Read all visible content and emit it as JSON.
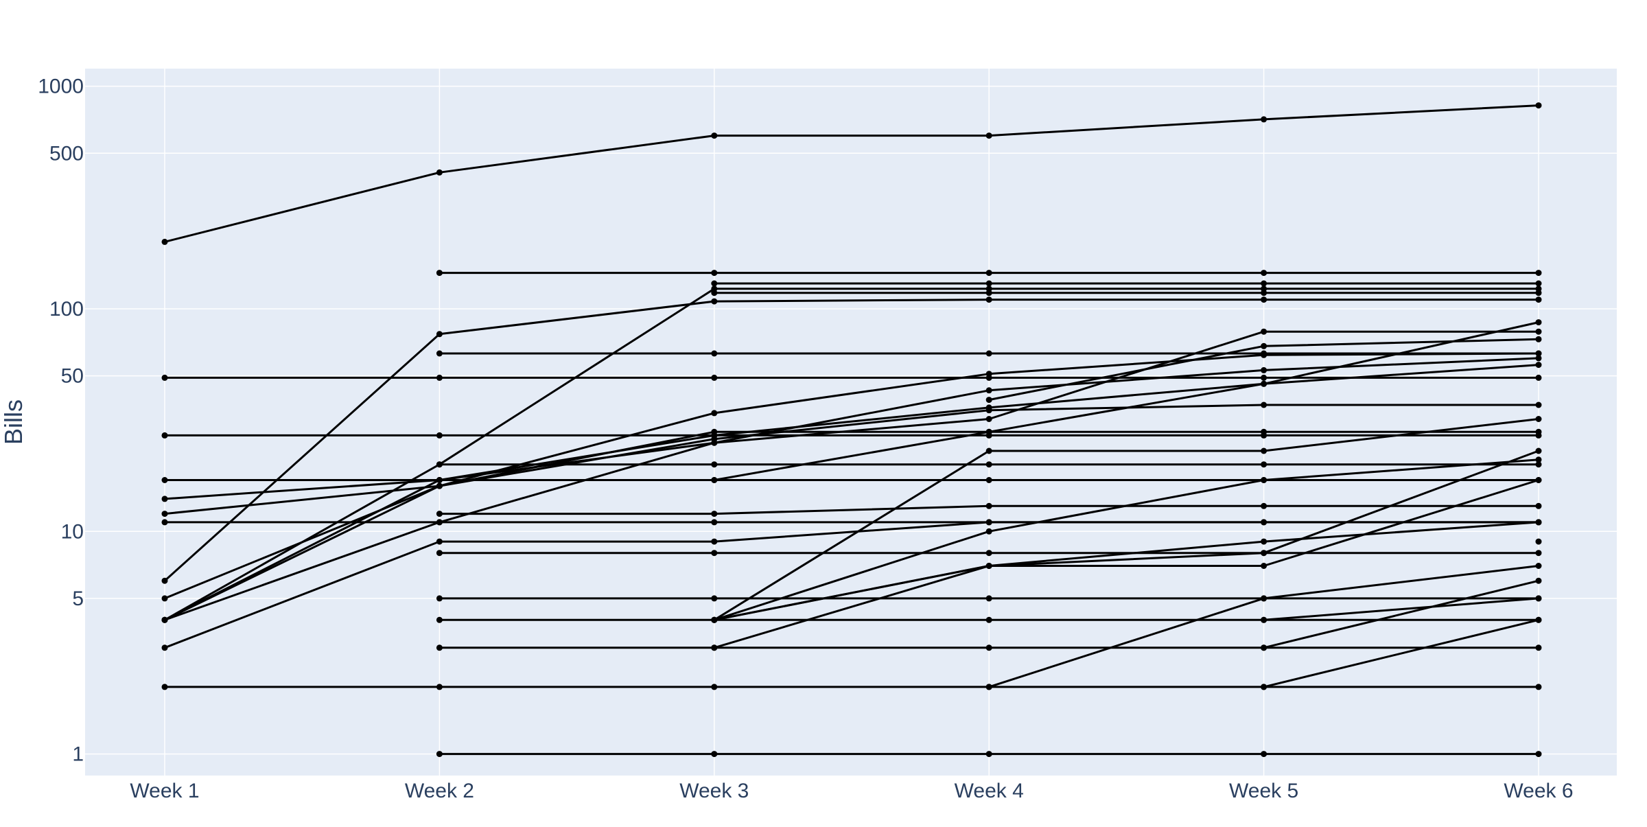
{
  "colors": {
    "plot_background": "#E5ECF6",
    "gridline": "#FFFFFF",
    "line": "#000000",
    "tick_text": "#2A3F5F"
  },
  "chart_data": {
    "type": "line",
    "title": "",
    "xlabel": "",
    "ylabel": "Bills",
    "x_scale": "category",
    "y_scale": "log",
    "ylim": [
      0.8,
      1200
    ],
    "grid": true,
    "legend": "none",
    "categories": [
      "Week 1",
      "Week 2",
      "Week 3",
      "Week 4",
      "Week 5",
      "Week 6"
    ],
    "y_ticks": [
      1,
      5,
      10,
      50,
      100,
      500,
      1000
    ],
    "y_tick_labels": [
      "1",
      "5",
      "10",
      "50",
      "100",
      "500",
      "1000"
    ],
    "series": [
      {
        "values": [
          200,
          410,
          600,
          600,
          710,
          820
        ]
      },
      {
        "values": [
          49,
          49,
          49,
          49,
          49,
          49
        ]
      },
      {
        "values": [
          27,
          27,
          27,
          27,
          27,
          27
        ]
      },
      {
        "values": [
          17,
          17,
          17,
          17,
          17,
          17
        ]
      },
      {
        "values": [
          2,
          2,
          2,
          2,
          2,
          2
        ]
      },
      {
        "values": [
          11,
          11,
          11,
          11,
          11,
          11
        ]
      },
      {
        "values": [
          6,
          77,
          108,
          110,
          110,
          110
        ]
      },
      {
        "values": [
          4,
          20,
          123,
          123,
          123,
          123
        ]
      },
      {
        "values": [
          12,
          16,
          28,
          28,
          28,
          28
        ]
      },
      {
        "values": [
          14,
          17,
          27,
          36,
          46,
          56
        ]
      },
      {
        "values": [
          5,
          16,
          26,
          35,
          37,
          37
        ]
      },
      {
        "values": [
          4,
          17,
          25,
          43,
          53,
          60
        ]
      },
      {
        "values": [
          4,
          16,
          34,
          51,
          62,
          63
        ]
      },
      {
        "values": [
          4,
          11,
          25,
          32,
          79,
          79
        ]
      },
      {
        "values": [
          3,
          9,
          9,
          11,
          11,
          11
        ]
      },
      {
        "values": [
          null,
          145,
          145,
          145,
          145,
          145
        ]
      },
      {
        "values": [
          null,
          63,
          63,
          63,
          63,
          63
        ]
      },
      {
        "values": [
          null,
          20,
          20,
          20,
          20,
          20
        ]
      },
      {
        "values": [
          null,
          12,
          12,
          13,
          13,
          13
        ]
      },
      {
        "values": [
          null,
          8,
          8,
          8,
          8,
          8
        ]
      },
      {
        "values": [
          null,
          5,
          5,
          5,
          5,
          5
        ]
      },
      {
        "values": [
          null,
          4,
          4,
          4,
          4,
          4
        ]
      },
      {
        "values": [
          null,
          3,
          3,
          3,
          3,
          3
        ]
      },
      {
        "values": [
          null,
          1,
          1,
          1,
          1,
          1
        ]
      },
      {
        "values": [
          null,
          null,
          130,
          130,
          130,
          130
        ]
      },
      {
        "values": [
          null,
          null,
          118,
          118,
          118,
          118
        ]
      },
      {
        "values": [
          null,
          null,
          17,
          28,
          46,
          87
        ]
      },
      {
        "values": [
          null,
          null,
          4,
          23,
          23,
          32
        ]
      },
      {
        "values": [
          null,
          null,
          4,
          10,
          17,
          21
        ]
      },
      {
        "values": [
          null,
          null,
          4,
          7,
          9,
          11
        ]
      },
      {
        "values": [
          null,
          null,
          4,
          7,
          7,
          17
        ]
      },
      {
        "values": [
          null,
          null,
          3,
          7,
          8,
          23
        ]
      },
      {
        "values": [
          null,
          null,
          null,
          39,
          68,
          73
        ]
      },
      {
        "values": [
          null,
          null,
          null,
          2,
          5,
          7
        ]
      },
      {
        "values": [
          null,
          null,
          null,
          null,
          4,
          5
        ]
      },
      {
        "values": [
          null,
          null,
          null,
          null,
          3,
          6
        ]
      },
      {
        "values": [
          null,
          null,
          null,
          null,
          2,
          4
        ]
      },
      {
        "values": [
          null,
          null,
          null,
          null,
          null,
          9
        ]
      }
    ]
  }
}
